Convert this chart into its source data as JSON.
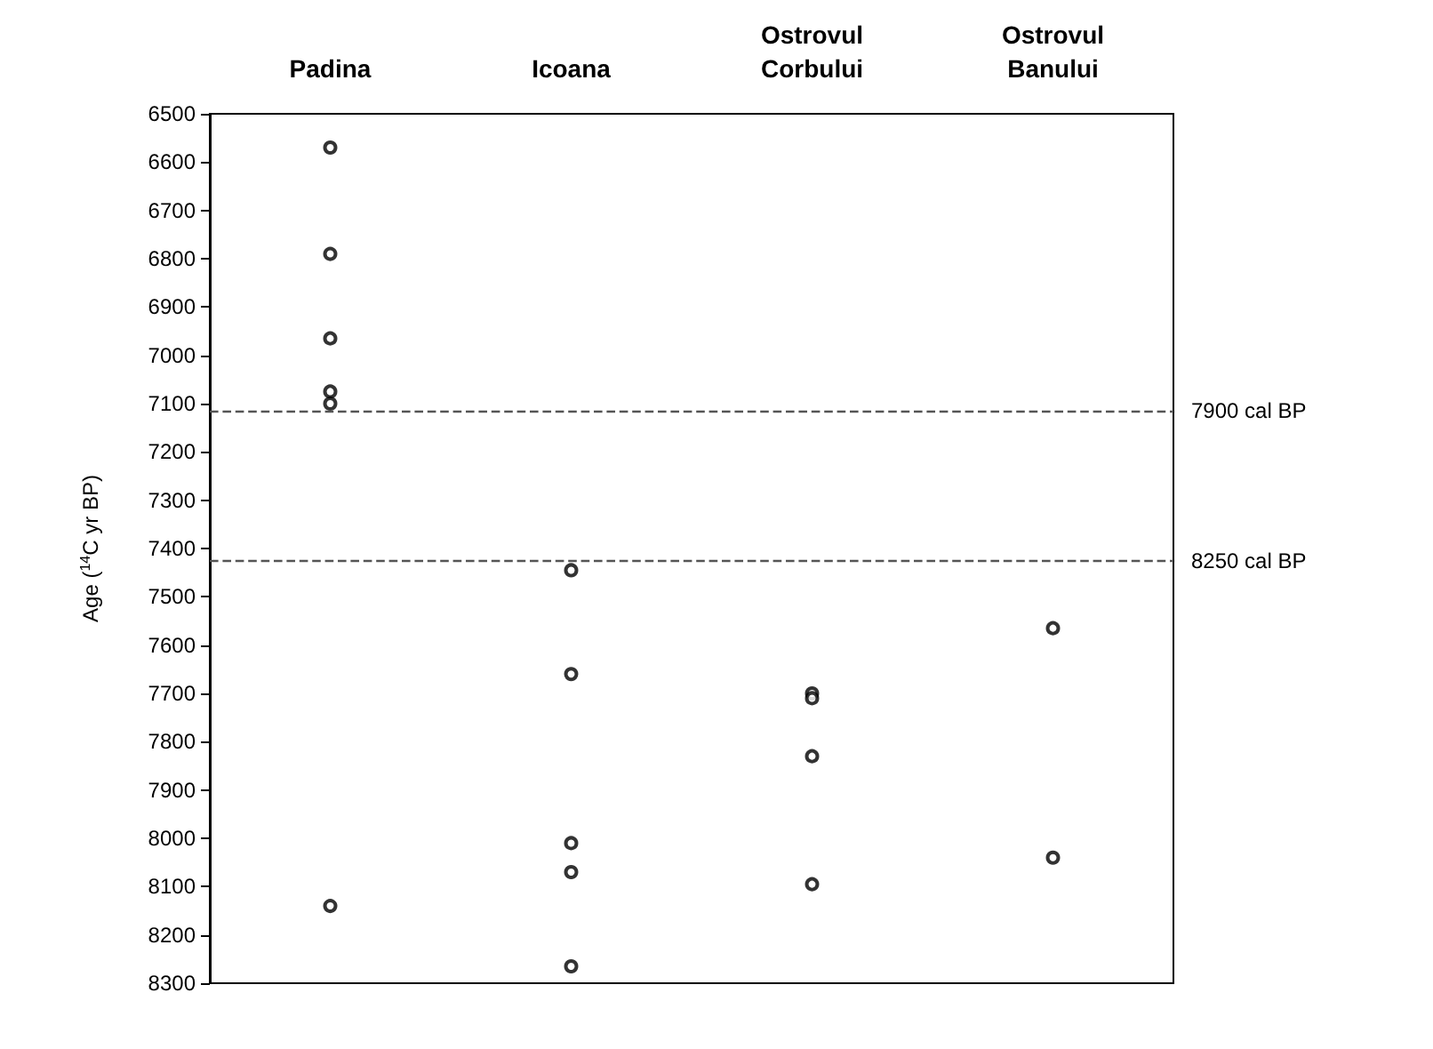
{
  "chart_data": {
    "type": "scatter",
    "categories": [
      "Padina",
      "Icoana",
      "Ostrovul\nCorbului",
      "Ostrovul\nBanului"
    ],
    "ylabel": "Age ($^{14}$C yr BP)",
    "series": [
      {
        "color": "#000000",
        "x": [
          "Padina",
          "Padina",
          "Padina",
          "Padina",
          "Padina",
          "Padina",
          "Icoana",
          "Icoana",
          "Icoana",
          "Icoana",
          "Icoana",
          "Ostrovul\nCorbului",
          "Ostrovul\nCorbului",
          "Ostrovul\nCorbului",
          "Ostrovul\nCorbului",
          "Ostrovul\nBanului",
          "Ostrovul\nBanului"
        ],
        "values": [
          6570,
          6790,
          6965,
          7075,
          7100,
          8140,
          7445,
          7660,
          8010,
          8070,
          8265,
          7700,
          7710,
          7830,
          8095,
          7565,
          8040
        ]
      }
    ],
    "ylim": [
      8300,
      6500
    ],
    "yticks": [
      6500,
      6600,
      6700,
      6800,
      6900,
      7000,
      7100,
      7200,
      7300,
      7400,
      7500,
      7600,
      7700,
      7800,
      7900,
      8000,
      8100,
      8200,
      8300
    ],
    "ref_lines": [
      {
        "axis": "y",
        "value": 7115,
        "label": "7900 cal BP",
        "color": "#555555",
        "line_style": "dashed"
      },
      {
        "axis": "y",
        "value": 7425,
        "label": "8250 cal BP",
        "color": "#555555",
        "line_style": "dashed"
      }
    ],
    "marker": "circle",
    "grid": false
  }
}
